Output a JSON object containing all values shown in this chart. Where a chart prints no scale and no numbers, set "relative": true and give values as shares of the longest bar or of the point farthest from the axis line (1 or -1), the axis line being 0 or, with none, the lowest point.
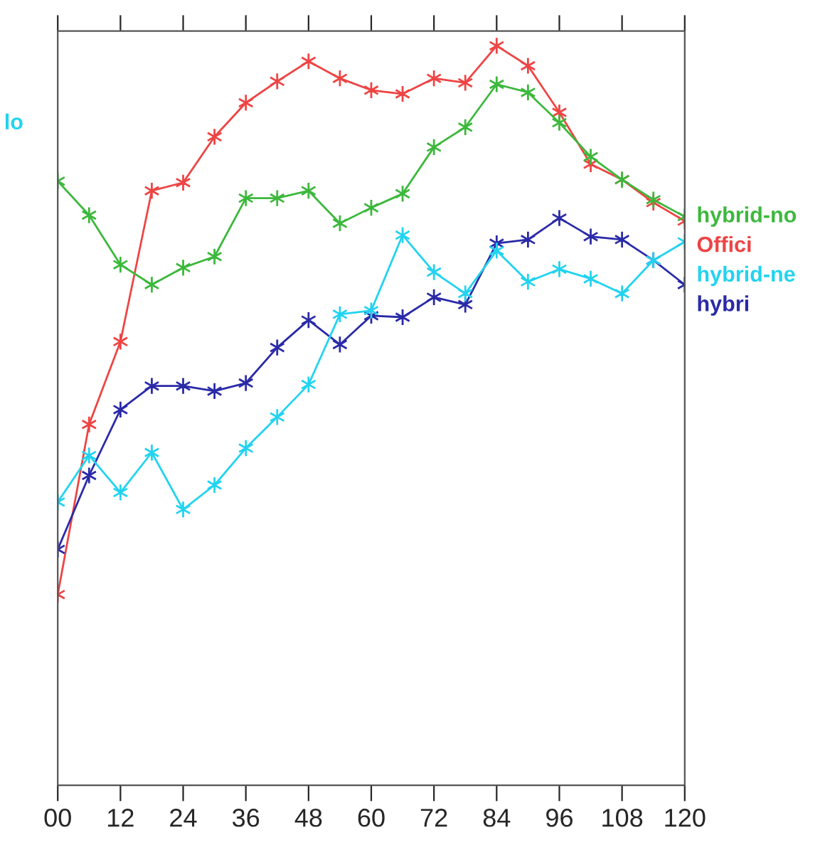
{
  "chart_data": {
    "type": "line",
    "relative": true,
    "x": [
      0,
      6,
      12,
      18,
      24,
      30,
      36,
      42,
      48,
      54,
      60,
      66,
      72,
      78,
      84,
      90,
      96,
      102,
      108,
      114,
      120
    ],
    "xlim": [
      0,
      120
    ],
    "xticks": [
      {
        "value": 0,
        "label": "00"
      },
      12,
      24,
      36,
      48,
      60,
      72,
      84,
      96,
      108,
      120
    ],
    "marker": "cross",
    "grid": false,
    "annotations": [
      "lo"
    ],
    "series": [
      {
        "name": "Offici",
        "color": "#ee4444",
        "values": [
          0.258,
          0.488,
          0.6,
          0.804,
          0.815,
          0.877,
          0.923,
          0.952,
          0.979,
          0.956,
          0.94,
          0.935,
          0.956,
          0.95,
          1.0,
          0.973,
          0.91,
          0.84,
          0.819,
          0.788,
          0.763
        ]
      },
      {
        "name": "hybrid-no",
        "color": "#3cb83c",
        "values": [
          0.817,
          0.771,
          0.704,
          0.677,
          0.7,
          0.715,
          0.794,
          0.794,
          0.804,
          0.76,
          0.781,
          0.8,
          0.863,
          0.89,
          0.948,
          0.937,
          0.896,
          0.85,
          0.819,
          0.792,
          0.769
        ]
      },
      {
        "name": "hybri",
        "color": "#2a2aa8",
        "values": [
          0.319,
          0.419,
          0.508,
          0.54,
          0.54,
          0.533,
          0.544,
          0.592,
          0.629,
          0.596,
          0.635,
          0.633,
          0.66,
          0.65,
          0.733,
          0.738,
          0.767,
          0.742,
          0.738,
          0.71,
          0.677
        ]
      },
      {
        "name": "hybrid-ne",
        "color": "#22d3f0",
        "values": [
          0.383,
          0.446,
          0.396,
          0.45,
          0.373,
          0.406,
          0.456,
          0.498,
          0.542,
          0.637,
          0.642,
          0.744,
          0.694,
          0.665,
          0.723,
          0.681,
          0.698,
          0.685,
          0.665,
          0.71,
          0.735
        ]
      }
    ]
  }
}
